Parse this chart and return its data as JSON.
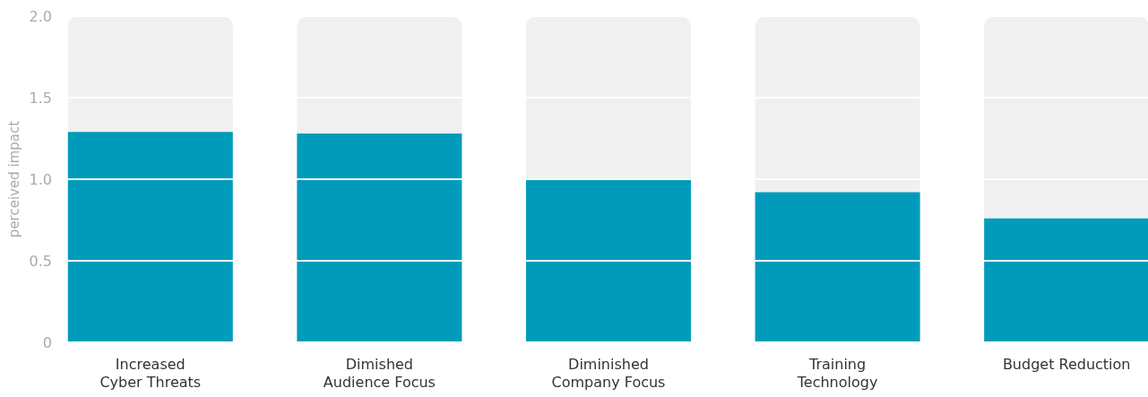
{
  "chart_data": {
    "type": "bar",
    "ylabel": "perceived impact",
    "categories": [
      "Increased\nCyber Threats",
      "Dimished\nAudience Focus",
      "Diminished\nCompany Focus",
      "Training\nTechnology",
      "Budget Reduction"
    ],
    "values": [
      1.29,
      1.28,
      1.0,
      0.92,
      0.76
    ],
    "color": "#009bbb",
    "ylim": [
      0,
      2
    ],
    "yticks": [
      {
        "value": 0,
        "label": "0"
      },
      0.5,
      {
        "value": 1,
        "label": "1.0"
      },
      1.5,
      {
        "value": 2,
        "label": "2.0"
      }
    ],
    "grid": "y"
  }
}
